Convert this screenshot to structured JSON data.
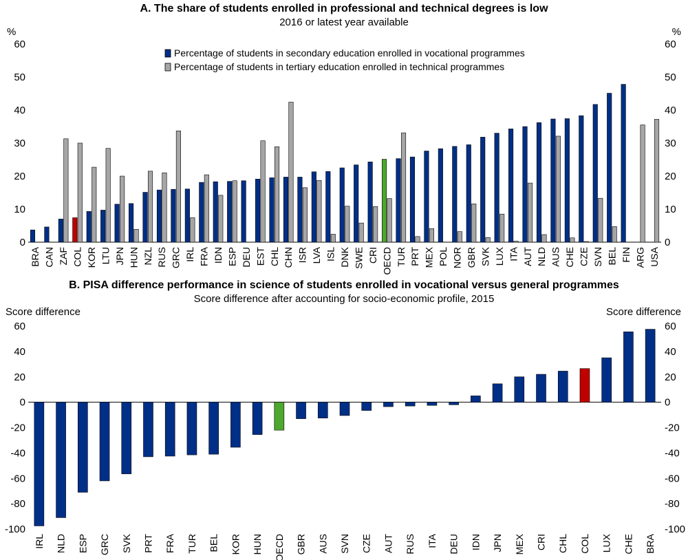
{
  "colors": {
    "vocational": "#002f87",
    "tertiary": "#a6a6a6",
    "highlight_col": "#c00000",
    "highlight_oecd": "#4ea72e",
    "bar_outline": "#000000"
  },
  "chart_data": [
    {
      "type": "bar",
      "title": "A. The share of students enrolled in professional and technical degrees is low",
      "subtitle": "2016 or latest year available",
      "ylabel_left": "%",
      "ylabel_right": "%",
      "ylim": [
        0,
        60
      ],
      "yticks": [
        0,
        10,
        20,
        30,
        40,
        50,
        60
      ],
      "legend_position": "top-center",
      "grid": false,
      "highlight": {
        "COL": "highlight_col",
        "OECD": "highlight_oecd"
      },
      "categories": [
        "BRA",
        "CAN",
        "ZAF",
        "COL",
        "KOR",
        "LTU",
        "JPN",
        "HUN",
        "NZL",
        "RUS",
        "GRC",
        "IRL",
        "FRA",
        "IDN",
        "ESP",
        "DEU",
        "EST",
        "CHL",
        "CHN",
        "ISR",
        "LVA",
        "ISL",
        "DNK",
        "SWE",
        "CRI",
        "OECD",
        "TUR",
        "PRT",
        "MEX",
        "POL",
        "NOR",
        "GBR",
        "SVK",
        "LUX",
        "ITA",
        "AUT",
        "NLD",
        "AUS",
        "CHE",
        "CZE",
        "SVN",
        "BEL",
        "FIN",
        "ARG",
        "USA"
      ],
      "series": [
        {
          "name": "Percentage of students in secondary education enrolled in vocational programmes",
          "color": "vocational",
          "values": [
            3.7,
            4.6,
            7.0,
            7.4,
            9.3,
            9.7,
            11.5,
            11.7,
            15.1,
            15.8,
            16.0,
            16.1,
            18.1,
            18.3,
            18.4,
            18.6,
            19.1,
            19.5,
            19.7,
            19.7,
            21.3,
            21.4,
            22.5,
            23.4,
            24.3,
            25.1,
            25.3,
            25.8,
            27.6,
            28.3,
            29.0,
            29.5,
            31.8,
            33.0,
            34.3,
            35.0,
            36.2,
            37.3,
            37.4,
            38.3,
            41.7,
            45.1,
            47.8,
            null,
            null
          ]
        },
        {
          "name": "Percentage of students in tertiary education enrolled in technical programmes",
          "color": "tertiary",
          "values": [
            null,
            null,
            31.3,
            30.0,
            22.7,
            28.4,
            20.0,
            3.9,
            21.5,
            21.0,
            33.7,
            7.4,
            20.4,
            14.2,
            18.6,
            null,
            30.7,
            28.9,
            42.4,
            16.5,
            18.7,
            2.4,
            10.9,
            5.8,
            10.8,
            13.2,
            33.1,
            1.7,
            4.1,
            null,
            3.2,
            11.6,
            1.4,
            8.5,
            0.3,
            17.9,
            2.3,
            32.1,
            1.3,
            0.2,
            13.3,
            4.7,
            null,
            35.5,
            37.2
          ]
        }
      ]
    },
    {
      "type": "bar",
      "title": "B. PISA difference performance in science of students enrolled in vocational versus general programmes",
      "subtitle": "Score difference after accounting for socio-economic profile, 2015",
      "ylabel_left": "Score difference",
      "ylabel_right": "Score difference",
      "ylim": [
        -100,
        60
      ],
      "yticks": [
        -100,
        -80,
        -60,
        -40,
        -20,
        0,
        20,
        40,
        60
      ],
      "grid": false,
      "highlight": {
        "COL": "highlight_col",
        "OECD": "highlight_oecd"
      },
      "categories": [
        "IRL",
        "NLD",
        "ESP",
        "GRC",
        "SVK",
        "PRT",
        "FRA",
        "TUR",
        "BEL",
        "KOR",
        "HUN",
        "OECD",
        "GBR",
        "AUS",
        "SVN",
        "CZE",
        "AUT",
        "RUS",
        "ITA",
        "DEU",
        "IDN",
        "JPN",
        "MEX",
        "CRI",
        "CHL",
        "COL",
        "LUX",
        "CHE",
        "BRA"
      ],
      "values": [
        -97.5,
        -91.0,
        -71.0,
        -62.0,
        -56.5,
        -43.0,
        -42.5,
        -41.5,
        -41.0,
        -35.5,
        -25.5,
        -22.0,
        -13.0,
        -12.5,
        -10.5,
        -6.5,
        -3.5,
        -3.0,
        -2.5,
        -2.0,
        5.0,
        14.5,
        20.0,
        22.0,
        24.5,
        26.5,
        35.0,
        55.5,
        57.5
      ]
    }
  ]
}
